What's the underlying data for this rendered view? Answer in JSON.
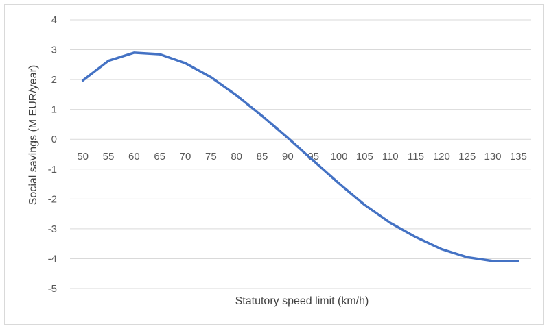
{
  "chart_data": {
    "type": "line",
    "title": "",
    "xlabel": "Statutory speed limit (km/h)",
    "ylabel": "Social savings (M EUR/year)",
    "ylim": [
      -5,
      4
    ],
    "yticks": [
      4,
      3,
      2,
      1,
      0,
      -1,
      -2,
      -3,
      -4,
      -5
    ],
    "grid": true,
    "legend": "none",
    "categories": [
      "50",
      "55",
      "60",
      "65",
      "70",
      "75",
      "80",
      "85",
      "90",
      "95",
      "100",
      "105",
      "110",
      "115",
      "120",
      "125",
      "130",
      "135"
    ],
    "series": [
      {
        "color": "#4472c4",
        "values": [
          1.97,
          2.63,
          2.9,
          2.85,
          2.55,
          2.08,
          1.47,
          0.78,
          0.05,
          -0.72,
          -1.48,
          -2.2,
          -2.8,
          -3.28,
          -3.68,
          -3.95,
          -4.08,
          -4.08
        ]
      }
    ]
  }
}
